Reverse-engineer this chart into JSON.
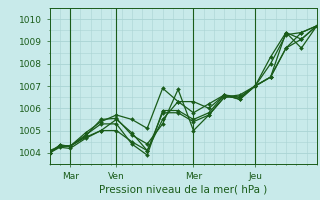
{
  "title": "",
  "xlabel": "Pression niveau de la mer( hPa )",
  "ylabel": "",
  "bg_color": "#c8eaea",
  "grid_color": "#aad4d4",
  "line_color": "#1a5c1a",
  "marker_color": "#1a5c1a",
  "ylim": [
    1003.5,
    1010.5
  ],
  "xlim": [
    0,
    104
  ],
  "xtick_positions": [
    8,
    26,
    56,
    80
  ],
  "xtick_labels": [
    "Mar",
    "Ven",
    "Mer",
    "Jeu"
  ],
  "ytick_positions": [
    1004,
    1005,
    1006,
    1007,
    1008,
    1009,
    1010
  ],
  "vline_positions": [
    8,
    26,
    56,
    80
  ],
  "series": [
    [
      0,
      1004.0,
      4,
      1004.35,
      8,
      1004.3,
      14,
      1004.75,
      20,
      1005.5,
      26,
      1005.55,
      32,
      1004.8,
      38,
      1004.4,
      44,
      1005.3,
      50,
      1006.85,
      56,
      1005.0,
      62,
      1005.7,
      68,
      1006.5,
      74,
      1006.5,
      80,
      1007.0,
      86,
      1008.3,
      92,
      1009.4,
      98,
      1009.1,
      104,
      1009.7
    ],
    [
      0,
      1004.0,
      4,
      1004.25,
      8,
      1004.2,
      14,
      1004.65,
      20,
      1005.0,
      26,
      1005.0,
      32,
      1004.5,
      38,
      1004.1,
      44,
      1005.5,
      50,
      1006.3,
      56,
      1005.8,
      62,
      1006.2,
      68,
      1006.6,
      74,
      1006.4,
      80,
      1007.0,
      86,
      1007.4,
      92,
      1009.4,
      98,
      1008.7,
      104,
      1009.7
    ],
    [
      0,
      1004.0,
      4,
      1004.35,
      8,
      1004.3,
      14,
      1004.9,
      20,
      1005.4,
      26,
      1005.7,
      32,
      1005.5,
      38,
      1005.1,
      44,
      1006.9,
      50,
      1006.3,
      56,
      1006.3,
      62,
      1006.0,
      68,
      1006.6,
      74,
      1006.5,
      80,
      1007.0,
      86,
      1007.4,
      92,
      1008.7,
      98,
      1009.4,
      104,
      1009.7
    ],
    [
      0,
      1004.0,
      4,
      1004.3,
      8,
      1004.3,
      14,
      1004.7,
      20,
      1005.0,
      26,
      1005.5,
      32,
      1004.9,
      38,
      1004.1,
      44,
      1005.8,
      50,
      1005.8,
      56,
      1005.4,
      62,
      1005.7,
      68,
      1006.5,
      74,
      1006.6,
      80,
      1007.0,
      86,
      1008.0,
      92,
      1009.3,
      98,
      1009.4,
      104,
      1009.7
    ],
    [
      0,
      1004.1,
      4,
      1004.3,
      8,
      1004.3,
      14,
      1004.8,
      20,
      1005.3,
      26,
      1005.3,
      32,
      1004.4,
      38,
      1003.9,
      44,
      1005.9,
      50,
      1005.9,
      56,
      1005.5,
      62,
      1005.8,
      68,
      1006.6,
      74,
      1006.4,
      80,
      1007.0,
      86,
      1007.4,
      92,
      1008.7,
      98,
      1009.1,
      104,
      1009.7
    ]
  ]
}
